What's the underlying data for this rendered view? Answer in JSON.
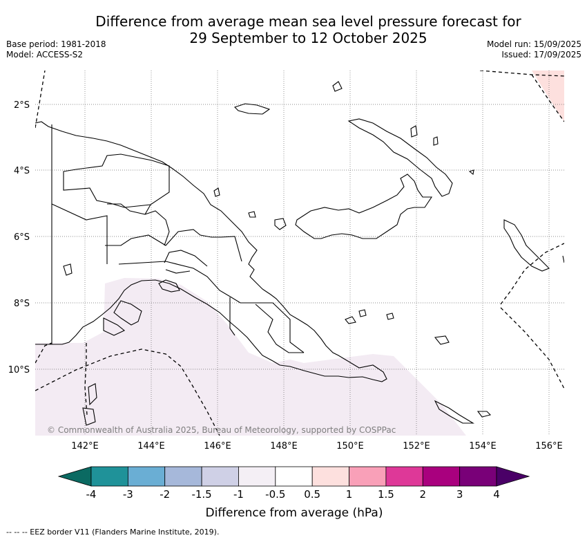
{
  "header": {
    "title_line1": "Difference from average mean sea level pressure forecast for",
    "title_line2": "29 September to 12 October 2025",
    "base_period": "Base period: 1981-2018",
    "model": "Model: ACCESS-S2",
    "model_run": "Model run: 15/09/2025",
    "issued": "Issued: 17/09/2025"
  },
  "map": {
    "lat_labels": [
      "2°S",
      "4°S",
      "6°S",
      "8°S",
      "10°S"
    ],
    "lon_labels": [
      "142°E",
      "144°E",
      "146°E",
      "148°E",
      "150°E",
      "152°E",
      "154°E",
      "156°E"
    ],
    "copyright": "© Commonwealth of Australia 2025, Bureau of Meteorology, supported by COSPPac",
    "land_stroke": "#000000",
    "anomaly_fill_light": "#f3ebf3",
    "anomaly_fill_pink": "#fde0de"
  },
  "colorbar": {
    "ticks": [
      "-4",
      "-3",
      "-2",
      "-1.5",
      "-1",
      "-0.5",
      "0.5",
      "1",
      "1.5",
      "2",
      "3",
      "4"
    ],
    "colors": [
      "#0b6a62",
      "#1f9299",
      "#6aaed4",
      "#a6b8da",
      "#cfd0e6",
      "#f4eff5",
      "#ffffff",
      "#fde0de",
      "#f9a0b8",
      "#de3898",
      "#a9007e",
      "#790078",
      "#4a0067"
    ],
    "label": "Difference from average (hPa)"
  },
  "footer": {
    "legend": "--  --  -- EEZ border V11 (Flanders Marine Institute, 2019)."
  }
}
